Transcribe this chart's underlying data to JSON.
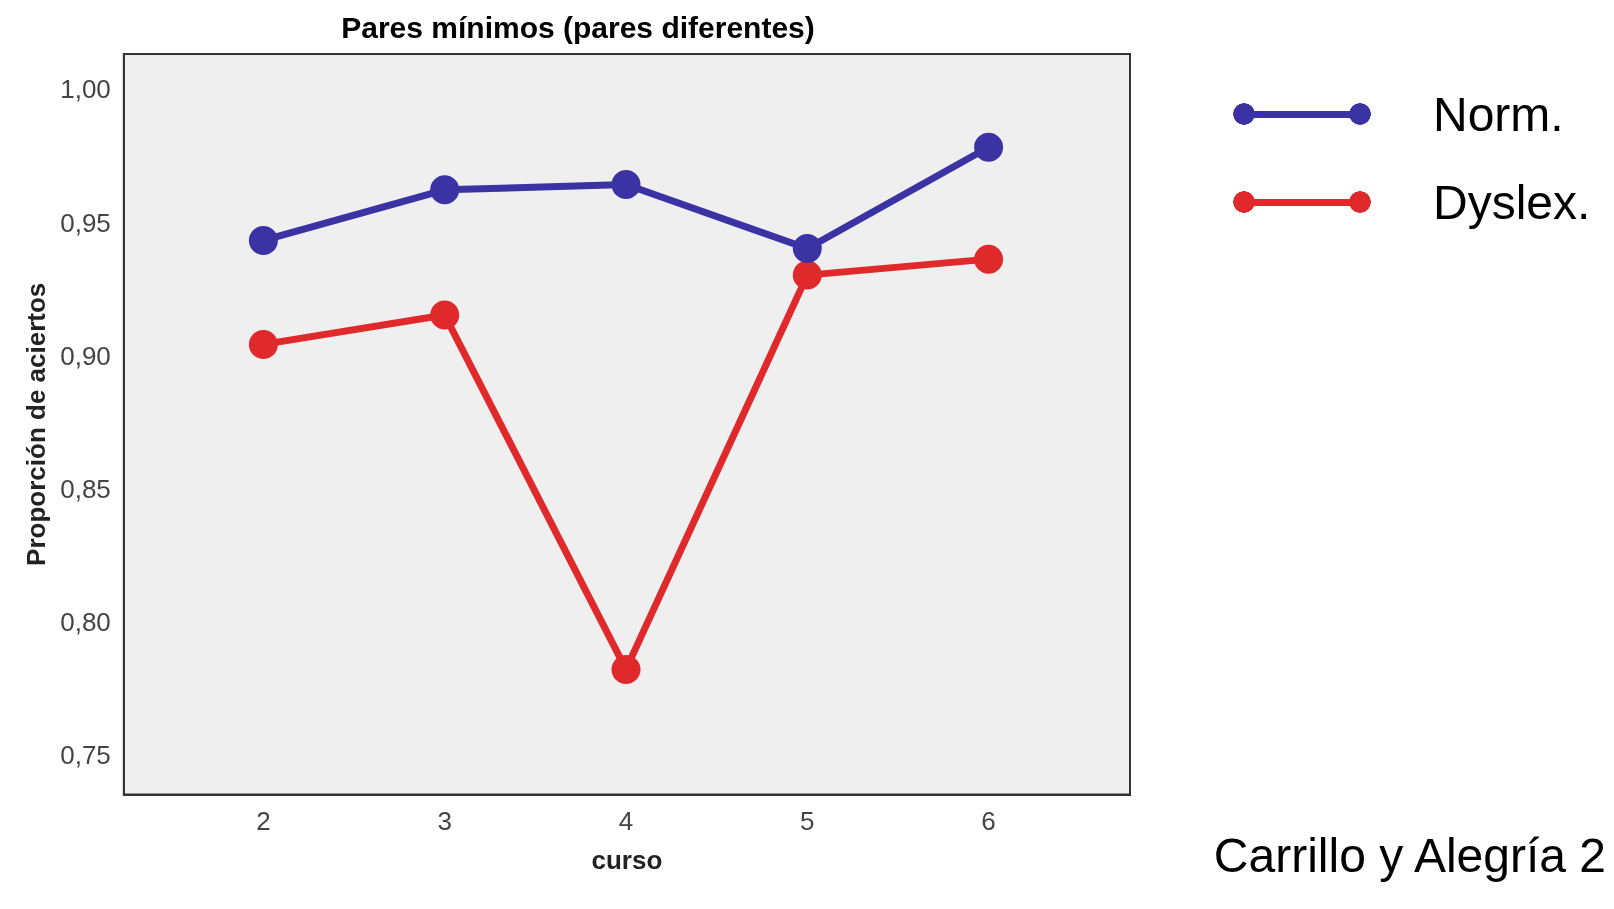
{
  "chart_data": {
    "type": "line",
    "title": "Pares mínimos (pares diferentes)",
    "xlabel": "curso",
    "ylabel": "Proporción de aciertos",
    "x": [
      2,
      3,
      4,
      5,
      6
    ],
    "xlim": [
      1.23,
      6.78
    ],
    "xticks": [
      2,
      3,
      4,
      5,
      6
    ],
    "ylim": [
      0.736,
      1.014
    ],
    "yticks": [
      {
        "value": 0.75,
        "label": "0,75"
      },
      {
        "value": 0.8,
        "label": "0,80"
      },
      {
        "value": 0.85,
        "label": "0,85"
      },
      {
        "value": 0.9,
        "label": "0,90"
      },
      {
        "value": 0.95,
        "label": "0,95"
      },
      {
        "value": 1.0,
        "label": "1,00"
      }
    ],
    "series": [
      {
        "name": "Norm.",
        "color": "#3b32a3",
        "values": [
          0.944,
          0.963,
          0.965,
          0.941,
          0.979
        ]
      },
      {
        "name": "Dyslex.",
        "color": "#e0292b",
        "values": [
          0.905,
          0.916,
          0.783,
          0.931,
          0.937
        ]
      }
    ],
    "marker": "circle",
    "line_style": "solid",
    "grid": false,
    "legend": "top right",
    "annotations": [
      "Carrillo y Alegría 2"
    ]
  }
}
